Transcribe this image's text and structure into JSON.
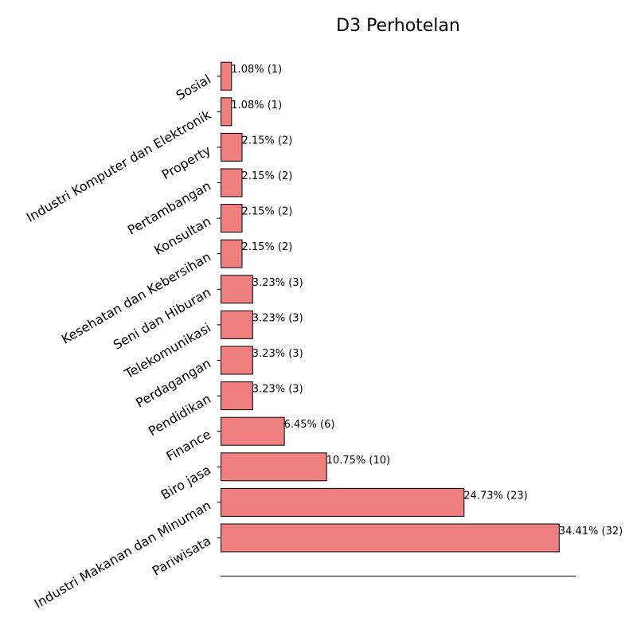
{
  "chart_data": {
    "type": "bar",
    "orientation": "horizontal",
    "title": "D3 Perhotelan",
    "xlabel": "",
    "ylabel": "",
    "bar_color": "#f08080",
    "edge_color": "#000000",
    "categories": [
      "Pariwisata",
      "Industri Makanan dan Minuman",
      "Biro jasa",
      "Finance",
      "Pendidikan",
      "Perdagangan",
      "Telekomunikasi",
      "Seni dan Hiburan",
      "Kesehatan dan Kebersihan",
      "Konsultan",
      "Pertambangan",
      "Property",
      "Industri Komputer dan Elektronik",
      "Sosial"
    ],
    "values": [
      32,
      23,
      10,
      6,
      3,
      3,
      3,
      3,
      2,
      2,
      2,
      2,
      1,
      1
    ],
    "data_labels": [
      "34.41% (32)",
      "24.73% (23)",
      "10.75% (10)",
      "6.45% (6)",
      "3.23% (3)",
      "3.23% (3)",
      "3.23% (3)",
      "3.23% (3)",
      "2.15% (2)",
      "2.15% (2)",
      "2.15% (2)",
      "2.15% (2)",
      "1.08% (1)",
      "1.08% (1)"
    ],
    "xlim": [
      0,
      33.6
    ],
    "grid": false
  }
}
